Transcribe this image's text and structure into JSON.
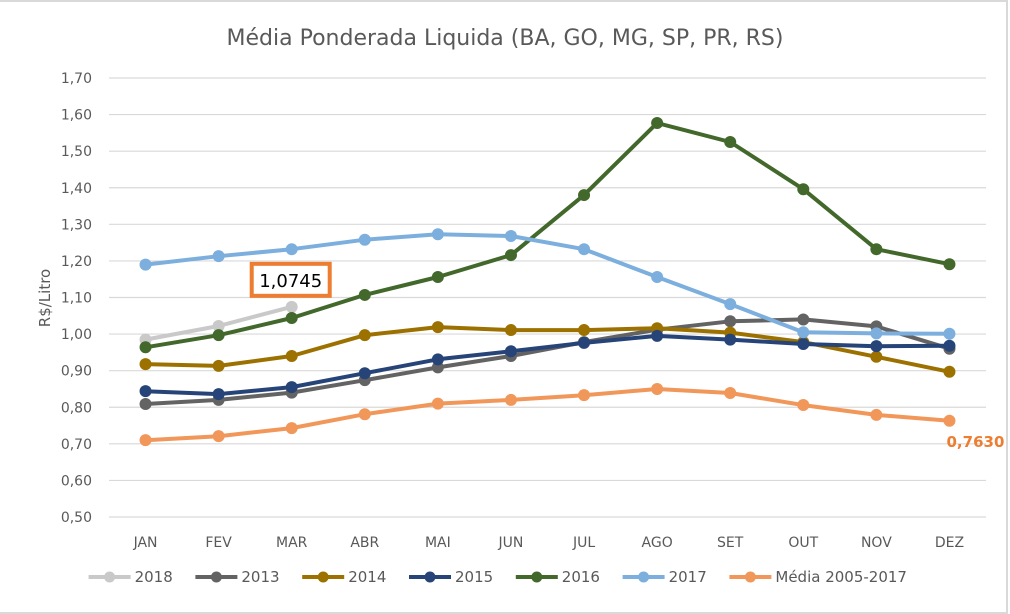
{
  "chart_data": {
    "type": "line",
    "title": "Média Ponderada Liquida (BA, GO, MG, SP, PR, RS)",
    "xlabel": "",
    "ylabel": "R$/Litro",
    "ylim": [
      0.5,
      1.7
    ],
    "ytick_step": 0.1,
    "yticks": [
      "0,50",
      "0,60",
      "0,70",
      "0,80",
      "0,90",
      "1,00",
      "1,10",
      "1,20",
      "1,30",
      "1,40",
      "1,50",
      "1,60",
      "1,70"
    ],
    "grid": true,
    "legend_position": "bottom",
    "categories": [
      "JAN",
      "FEV",
      "MAR",
      "ABR",
      "MAI",
      "JUN",
      "JUL",
      "AGO",
      "SET",
      "OUT",
      "NOV",
      "DEZ"
    ],
    "series": [
      {
        "name": "2018",
        "color": "#C9C9C9",
        "values": [
          0.985,
          1.022,
          1.0745,
          null,
          null,
          null,
          null,
          null,
          null,
          null,
          null,
          null
        ]
      },
      {
        "name": "2013",
        "color": "#636363",
        "values": [
          0.809,
          0.82,
          0.84,
          0.874,
          0.909,
          0.94,
          0.978,
          1.012,
          1.035,
          1.04,
          1.021,
          0.96
        ]
      },
      {
        "name": "2014",
        "color": "#9C7100",
        "values": [
          0.918,
          0.913,
          0.94,
          0.997,
          1.019,
          1.011,
          1.011,
          1.016,
          1.004,
          0.978,
          0.938,
          0.897
        ]
      },
      {
        "name": "2015",
        "color": "#264478",
        "values": [
          0.844,
          0.836,
          0.855,
          0.893,
          0.931,
          0.953,
          0.976,
          0.995,
          0.985,
          0.973,
          0.967,
          0.968
        ]
      },
      {
        "name": "2016",
        "color": "#43682B",
        "values": [
          0.964,
          0.997,
          1.044,
          1.107,
          1.156,
          1.216,
          1.38,
          1.577,
          1.525,
          1.396,
          1.232,
          1.191
        ]
      },
      {
        "name": "2017",
        "color": "#7CAFDD",
        "values": [
          1.19,
          1.213,
          1.232,
          1.258,
          1.273,
          1.268,
          1.232,
          1.156,
          1.082,
          1.005,
          1.002,
          1.001
        ]
      },
      {
        "name": "Média 2005-2017",
        "color": "#F1975A",
        "values": [
          0.71,
          0.721,
          0.743,
          0.781,
          0.81,
          0.82,
          0.833,
          0.85,
          0.839,
          0.806,
          0.779,
          0.763
        ]
      }
    ],
    "annotations": [
      {
        "text": "1,0745",
        "series": "2018",
        "category": "MAR",
        "style": "boxed",
        "border_color": "#ED7D31"
      },
      {
        "text": "0,7630",
        "series": "Média 2005-2017",
        "category": "DEZ",
        "style": "bold",
        "color": "#ED7D31"
      }
    ]
  }
}
